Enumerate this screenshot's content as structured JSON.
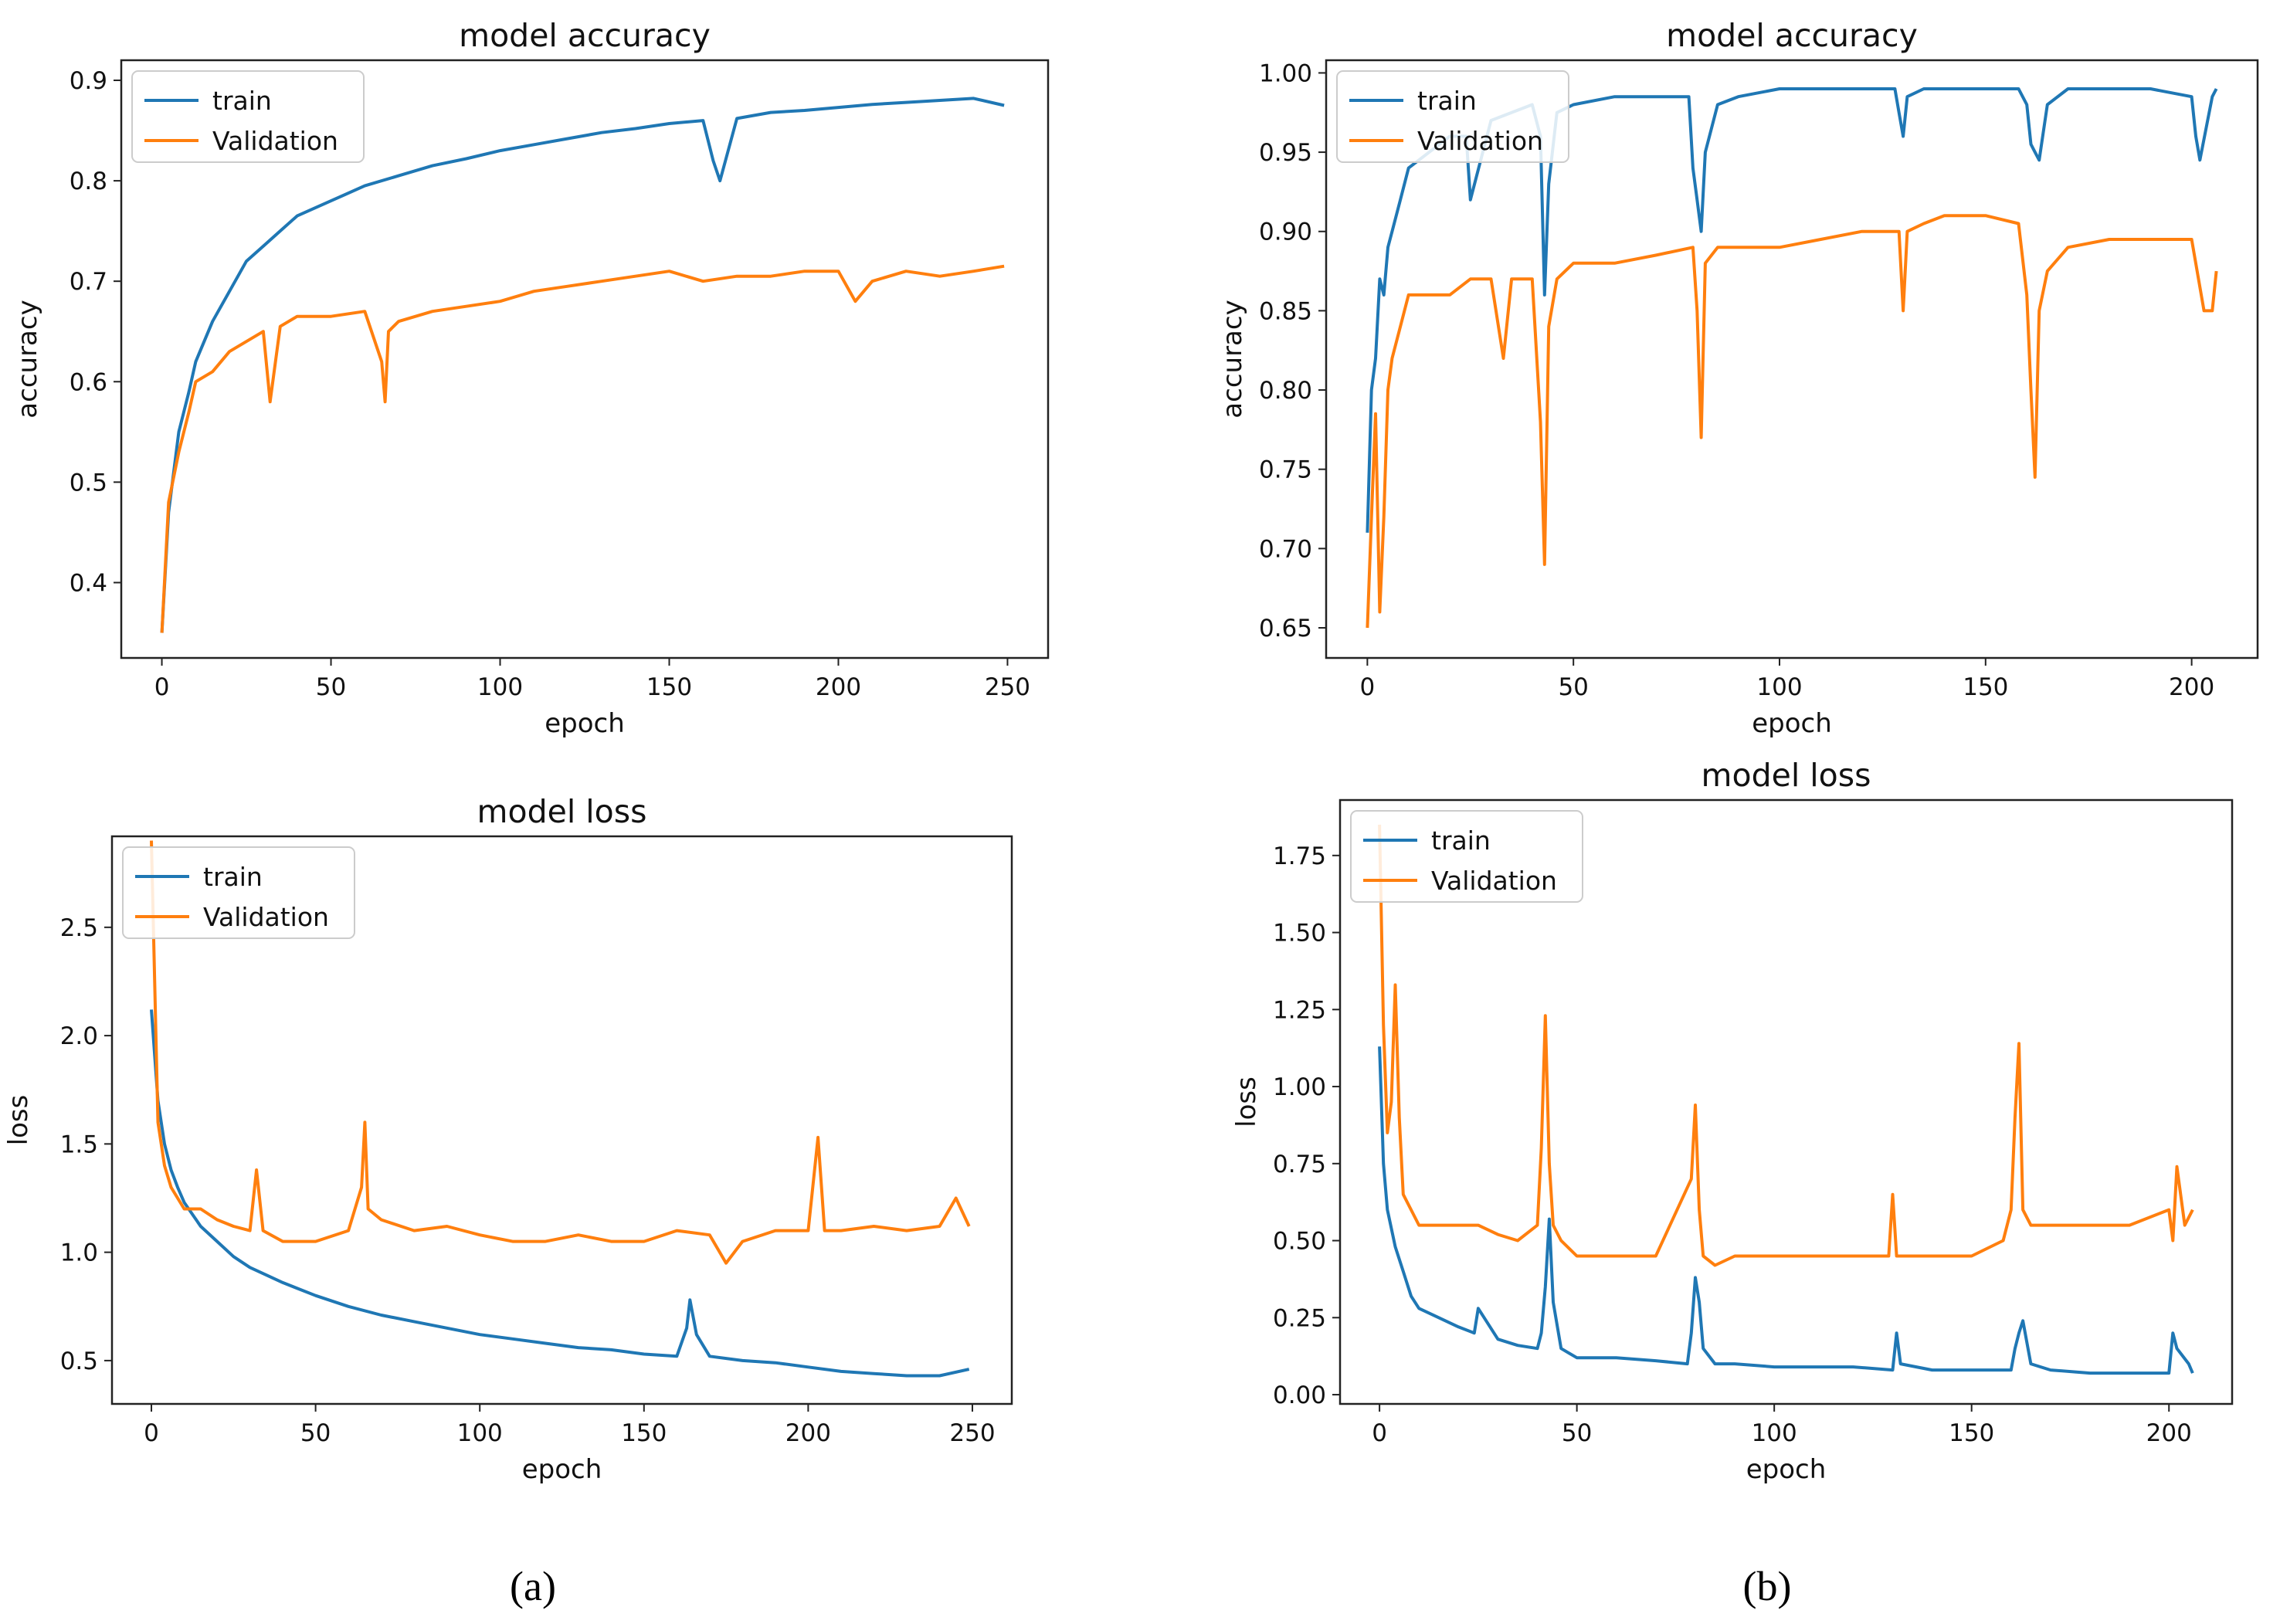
{
  "colors": {
    "train": "#1f77b4",
    "validation": "#ff7f0e"
  },
  "captions": {
    "a": "(a)",
    "b": "(b)"
  },
  "chart_data": [
    {
      "type": "line",
      "panel": "a-accuracy",
      "title": "model accuracy",
      "xlabel": "epoch",
      "ylabel": "accuracy",
      "xlim": [
        -12,
        262
      ],
      "ylim": [
        0.325,
        0.92
      ],
      "xticks": [
        0,
        50,
        100,
        150,
        200,
        250
      ],
      "yticks": [
        0.4,
        0.5,
        0.6,
        0.7,
        0.8,
        0.9
      ],
      "ytick_labels": [
        "0.4",
        "0.5",
        "0.6",
        "0.7",
        "0.8",
        "0.9"
      ],
      "legend": "upper-left",
      "grid": false,
      "series": [
        {
          "name": "train",
          "x": [
            0,
            2,
            5,
            8,
            10,
            15,
            20,
            25,
            30,
            35,
            40,
            50,
            60,
            70,
            80,
            90,
            100,
            110,
            120,
            130,
            140,
            150,
            160,
            163,
            165,
            170,
            180,
            190,
            200,
            210,
            220,
            230,
            240,
            249
          ],
          "y": [
            0.35,
            0.47,
            0.55,
            0.59,
            0.62,
            0.66,
            0.69,
            0.72,
            0.735,
            0.75,
            0.765,
            0.78,
            0.795,
            0.805,
            0.815,
            0.822,
            0.83,
            0.836,
            0.842,
            0.848,
            0.852,
            0.857,
            0.86,
            0.82,
            0.8,
            0.862,
            0.868,
            0.87,
            0.873,
            0.876,
            0.878,
            0.88,
            0.882,
            0.875
          ]
        },
        {
          "name": "Validation",
          "x": [
            0,
            2,
            5,
            8,
            10,
            15,
            20,
            25,
            30,
            32,
            35,
            40,
            50,
            60,
            65,
            66,
            67,
            70,
            80,
            90,
            100,
            110,
            120,
            130,
            140,
            150,
            160,
            170,
            180,
            190,
            200,
            205,
            210,
            220,
            230,
            240,
            249
          ],
          "y": [
            0.35,
            0.48,
            0.53,
            0.57,
            0.6,
            0.61,
            0.63,
            0.64,
            0.65,
            0.58,
            0.655,
            0.665,
            0.665,
            0.67,
            0.62,
            0.58,
            0.65,
            0.66,
            0.67,
            0.675,
            0.68,
            0.69,
            0.695,
            0.7,
            0.705,
            0.71,
            0.7,
            0.705,
            0.705,
            0.71,
            0.71,
            0.68,
            0.7,
            0.71,
            0.705,
            0.71,
            0.715
          ]
        }
      ]
    },
    {
      "type": "line",
      "panel": "a-loss",
      "title": "model loss",
      "xlabel": "epoch",
      "ylabel": "loss",
      "xlim": [
        -12,
        262
      ],
      "ylim": [
        0.3,
        2.92
      ],
      "xticks": [
        0,
        50,
        100,
        150,
        200,
        250
      ],
      "yticks": [
        0.5,
        1.0,
        1.5,
        2.0,
        2.5
      ],
      "ytick_labels": [
        "0.5",
        "1.0",
        "1.5",
        "2.0",
        "2.5"
      ],
      "legend": "upper-left",
      "grid": false,
      "series": [
        {
          "name": "train",
          "x": [
            0,
            2,
            4,
            6,
            8,
            10,
            15,
            20,
            25,
            30,
            40,
            50,
            60,
            70,
            80,
            90,
            100,
            110,
            120,
            130,
            140,
            150,
            160,
            163,
            164,
            166,
            170,
            180,
            190,
            200,
            210,
            220,
            230,
            240,
            249
          ],
          "y": [
            2.12,
            1.7,
            1.5,
            1.38,
            1.3,
            1.23,
            1.12,
            1.05,
            0.98,
            0.93,
            0.86,
            0.8,
            0.75,
            0.71,
            0.68,
            0.65,
            0.62,
            0.6,
            0.58,
            0.56,
            0.55,
            0.53,
            0.52,
            0.65,
            0.78,
            0.62,
            0.52,
            0.5,
            0.49,
            0.47,
            0.45,
            0.44,
            0.43,
            0.43,
            0.46
          ]
        },
        {
          "name": "Validation",
          "x": [
            0,
            2,
            4,
            6,
            8,
            10,
            15,
            20,
            25,
            30,
            32,
            34,
            40,
            50,
            60,
            64,
            65,
            66,
            70,
            80,
            90,
            100,
            110,
            120,
            130,
            140,
            150,
            160,
            170,
            175,
            180,
            190,
            200,
            203,
            205,
            210,
            220,
            230,
            240,
            245,
            249
          ],
          "y": [
            2.9,
            1.6,
            1.4,
            1.3,
            1.25,
            1.2,
            1.2,
            1.15,
            1.12,
            1.1,
            1.38,
            1.1,
            1.05,
            1.05,
            1.1,
            1.3,
            1.6,
            1.2,
            1.15,
            1.1,
            1.12,
            1.08,
            1.05,
            1.05,
            1.08,
            1.05,
            1.05,
            1.1,
            1.08,
            0.95,
            1.05,
            1.1,
            1.1,
            1.53,
            1.1,
            1.1,
            1.12,
            1.1,
            1.12,
            1.25,
            1.12
          ]
        }
      ]
    },
    {
      "type": "line",
      "panel": "b-accuracy",
      "title": "model accuracy",
      "xlabel": "epoch",
      "ylabel": "accuracy",
      "xlim": [
        -10,
        216
      ],
      "ylim": [
        0.631,
        1.008
      ],
      "xticks": [
        0,
        50,
        100,
        150,
        200
      ],
      "yticks": [
        0.65,
        0.7,
        0.75,
        0.8,
        0.85,
        0.9,
        0.95,
        1.0
      ],
      "ytick_labels": [
        "0.65",
        "0.70",
        "0.75",
        "0.80",
        "0.85",
        "0.90",
        "0.95",
        "1.00"
      ],
      "legend": "upper-left",
      "grid": false,
      "series": [
        {
          "name": "train",
          "x": [
            0,
            1,
            2,
            3,
            4,
            5,
            6,
            8,
            10,
            15,
            20,
            24,
            25,
            30,
            35,
            40,
            42,
            43,
            44,
            46,
            50,
            60,
            70,
            78,
            79,
            80,
            81,
            82,
            85,
            90,
            100,
            110,
            120,
            128,
            129,
            130,
            131,
            135,
            140,
            150,
            158,
            160,
            161,
            162,
            163,
            165,
            170,
            180,
            190,
            200,
            201,
            202,
            205,
            206
          ],
          "y": [
            0.71,
            0.8,
            0.82,
            0.87,
            0.86,
            0.89,
            0.9,
            0.92,
            0.94,
            0.95,
            0.96,
            0.96,
            0.92,
            0.97,
            0.975,
            0.98,
            0.96,
            0.86,
            0.93,
            0.975,
            0.98,
            0.985,
            0.985,
            0.985,
            0.94,
            0.92,
            0.9,
            0.95,
            0.98,
            0.985,
            0.99,
            0.99,
            0.99,
            0.99,
            0.975,
            0.96,
            0.985,
            0.99,
            0.99,
            0.99,
            0.99,
            0.98,
            0.955,
            0.95,
            0.945,
            0.98,
            0.99,
            0.99,
            0.99,
            0.985,
            0.96,
            0.945,
            0.985,
            0.99
          ]
        },
        {
          "name": "Validation",
          "x": [
            0,
            1,
            2,
            3,
            4,
            5,
            6,
            8,
            10,
            15,
            20,
            25,
            30,
            33,
            35,
            40,
            42,
            43,
            44,
            46,
            50,
            60,
            70,
            79,
            80,
            81,
            82,
            85,
            90,
            100,
            110,
            120,
            129,
            130,
            131,
            135,
            140,
            150,
            158,
            160,
            161,
            162,
            163,
            165,
            170,
            180,
            190,
            200,
            203,
            205,
            206
          ],
          "y": [
            0.65,
            0.72,
            0.785,
            0.66,
            0.72,
            0.8,
            0.82,
            0.84,
            0.86,
            0.86,
            0.86,
            0.87,
            0.87,
            0.82,
            0.87,
            0.87,
            0.78,
            0.69,
            0.84,
            0.87,
            0.88,
            0.88,
            0.885,
            0.89,
            0.85,
            0.77,
            0.88,
            0.89,
            0.89,
            0.89,
            0.895,
            0.9,
            0.9,
            0.85,
            0.9,
            0.905,
            0.91,
            0.91,
            0.905,
            0.86,
            0.8,
            0.745,
            0.85,
            0.875,
            0.89,
            0.895,
            0.895,
            0.895,
            0.85,
            0.85,
            0.875
          ]
        }
      ]
    },
    {
      "type": "line",
      "panel": "b-loss",
      "title": "model loss",
      "xlabel": "epoch",
      "ylabel": "loss",
      "xlim": [
        -10,
        216
      ],
      "ylim": [
        -0.03,
        1.93
      ],
      "xticks": [
        0,
        50,
        100,
        150,
        200
      ],
      "yticks": [
        0.0,
        0.25,
        0.5,
        0.75,
        1.0,
        1.25,
        1.5,
        1.75
      ],
      "ytick_labels": [
        "0.00",
        "0.25",
        "0.50",
        "0.75",
        "1.00",
        "1.25",
        "1.50",
        "1.75"
      ],
      "legend": "upper-left",
      "grid": false,
      "series": [
        {
          "name": "train",
          "x": [
            0,
            1,
            2,
            4,
            6,
            8,
            10,
            15,
            20,
            24,
            25,
            30,
            35,
            40,
            41,
            42,
            43,
            44,
            46,
            50,
            60,
            70,
            78,
            79,
            80,
            81,
            82,
            85,
            90,
            100,
            110,
            120,
            130,
            131,
            132,
            140,
            150,
            160,
            161,
            162,
            163,
            165,
            170,
            180,
            190,
            200,
            201,
            202,
            205,
            206
          ],
          "y": [
            1.13,
            0.75,
            0.6,
            0.48,
            0.4,
            0.32,
            0.28,
            0.25,
            0.22,
            0.2,
            0.28,
            0.18,
            0.16,
            0.15,
            0.2,
            0.35,
            0.57,
            0.3,
            0.15,
            0.12,
            0.12,
            0.11,
            0.1,
            0.2,
            0.38,
            0.3,
            0.15,
            0.1,
            0.1,
            0.09,
            0.09,
            0.09,
            0.08,
            0.2,
            0.1,
            0.08,
            0.08,
            0.08,
            0.15,
            0.2,
            0.24,
            0.1,
            0.08,
            0.07,
            0.07,
            0.07,
            0.2,
            0.15,
            0.1,
            0.07
          ]
        },
        {
          "name": "Validation",
          "x": [
            0,
            1,
            2,
            3,
            4,
            5,
            6,
            8,
            10,
            15,
            20,
            25,
            30,
            35,
            40,
            41,
            42,
            43,
            44,
            46,
            50,
            60,
            70,
            79,
            80,
            81,
            82,
            85,
            90,
            100,
            110,
            120,
            129,
            130,
            131,
            135,
            140,
            150,
            158,
            160,
            161,
            162,
            163,
            165,
            170,
            180,
            190,
            200,
            201,
            202,
            204,
            206
          ],
          "y": [
            1.85,
            1.2,
            0.85,
            0.95,
            1.33,
            0.9,
            0.65,
            0.6,
            0.55,
            0.55,
            0.55,
            0.55,
            0.52,
            0.5,
            0.55,
            0.8,
            1.23,
            0.75,
            0.55,
            0.5,
            0.45,
            0.45,
            0.45,
            0.7,
            0.94,
            0.6,
            0.45,
            0.42,
            0.45,
            0.45,
            0.45,
            0.45,
            0.45,
            0.65,
            0.45,
            0.45,
            0.45,
            0.45,
            0.5,
            0.6,
            0.9,
            1.14,
            0.6,
            0.55,
            0.55,
            0.55,
            0.55,
            0.6,
            0.5,
            0.74,
            0.55,
            0.6
          ]
        }
      ]
    }
  ]
}
